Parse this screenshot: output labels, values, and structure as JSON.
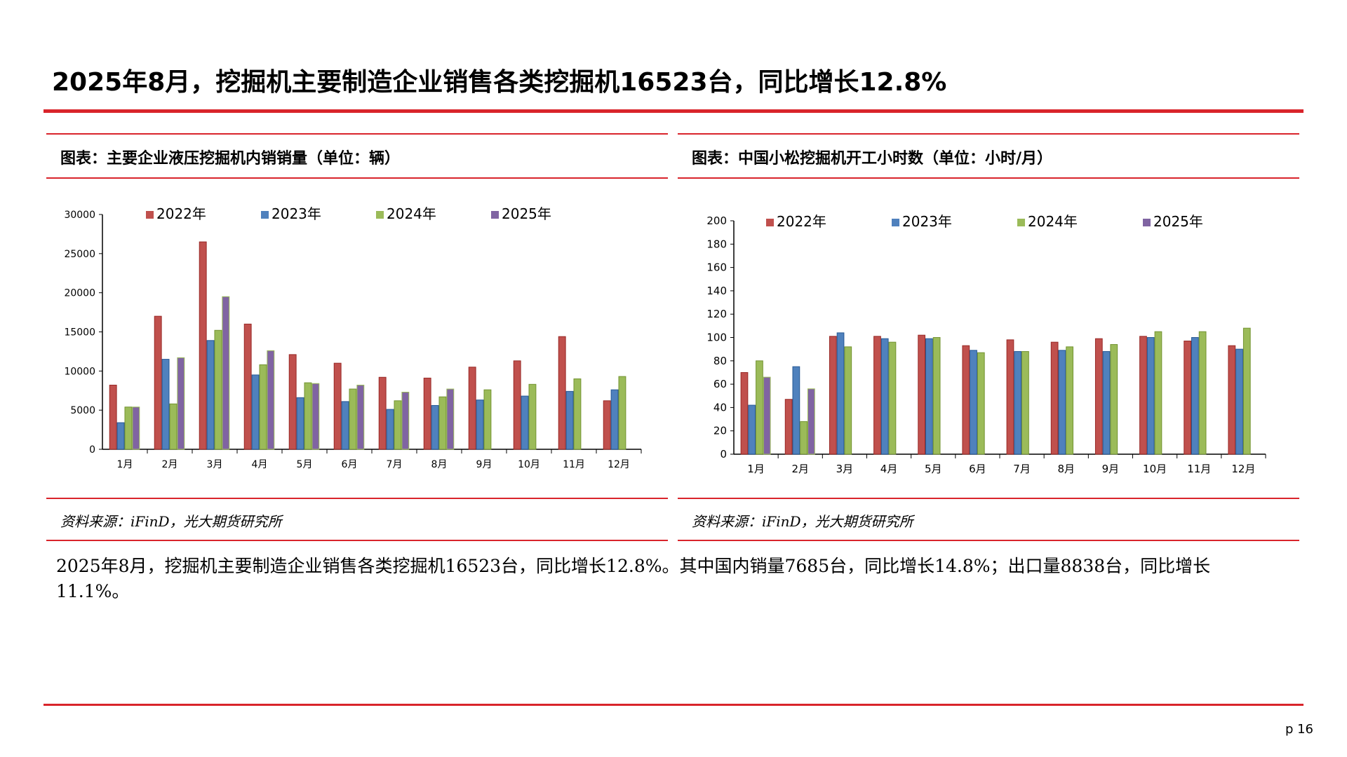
{
  "title": "2025年8月，挖掘机主要制造企业销售各类挖掘机16523台，同比增长12.8%",
  "colors": {
    "accent": "#d9242b",
    "s2022": "#c0504d",
    "s2023": "#4f81bd",
    "s2024": "#9bbb59",
    "s2025": "#8064a2"
  },
  "left_panel": {
    "title": "图表：主要企业液压挖掘机内销销量（单位：辆）",
    "source": "资料来源：iFinD，光大期货研究所"
  },
  "right_panel": {
    "title": "图表：中国小松挖掘机开工小时数（单位：小时/月）",
    "source": "资料来源：iFinD，光大期货研究所"
  },
  "body_text": "2025年8月，挖掘机主要制造企业销售各类挖掘机16523台，同比增长12.8%。其中国内销量7685台，同比增长14.8%；出口量8838台，同比增长11.1%。",
  "page_number": "p 16",
  "chart_data": [
    {
      "type": "bar",
      "categories": [
        "1月",
        "2月",
        "3月",
        "4月",
        "5月",
        "6月",
        "7月",
        "8月",
        "9月",
        "10月",
        "11月",
        "12月"
      ],
      "ylim": [
        0,
        30000
      ],
      "yticks": [
        0,
        5000,
        10000,
        15000,
        20000,
        25000,
        30000
      ],
      "legend_position": "top",
      "series": [
        {
          "name": "2022年",
          "values": [
            8200,
            17000,
            26500,
            16000,
            12100,
            11000,
            9200,
            9100,
            10500,
            11300,
            14400,
            6200
          ]
        },
        {
          "name": "2023年",
          "values": [
            3400,
            11500,
            13900,
            9500,
            6600,
            6100,
            5100,
            5600,
            6300,
            6800,
            7400,
            7600
          ]
        },
        {
          "name": "2024年",
          "values": [
            5400,
            5800,
            15200,
            10800,
            8500,
            7700,
            6200,
            6700,
            7600,
            8300,
            9000,
            9300
          ]
        },
        {
          "name": "2025年",
          "values": [
            5400,
            11700,
            19500,
            12600,
            8400,
            8200,
            7300,
            7700,
            null,
            null,
            null,
            null
          ]
        }
      ]
    },
    {
      "type": "bar",
      "categories": [
        "1月",
        "2月",
        "3月",
        "4月",
        "5月",
        "6月",
        "7月",
        "8月",
        "9月",
        "10月",
        "11月",
        "12月"
      ],
      "ylim": [
        0,
        200
      ],
      "yticks": [
        0,
        20,
        40,
        60,
        80,
        100,
        120,
        140,
        160,
        180,
        200
      ],
      "legend_position": "top",
      "series": [
        {
          "name": "2022年",
          "values": [
            70,
            47,
            101,
            101,
            102,
            93,
            98,
            96,
            99,
            101,
            97,
            93
          ]
        },
        {
          "name": "2023年",
          "values": [
            42,
            75,
            104,
            99,
            99,
            89,
            88,
            89,
            88,
            100,
            100,
            90
          ]
        },
        {
          "name": "2024年",
          "values": [
            80,
            28,
            92,
            96,
            100,
            87,
            88,
            92,
            94,
            105,
            105,
            108
          ]
        },
        {
          "name": "2025年",
          "values": [
            66,
            56,
            null,
            null,
            null,
            null,
            null,
            null,
            null,
            null,
            null,
            null
          ]
        }
      ]
    }
  ]
}
